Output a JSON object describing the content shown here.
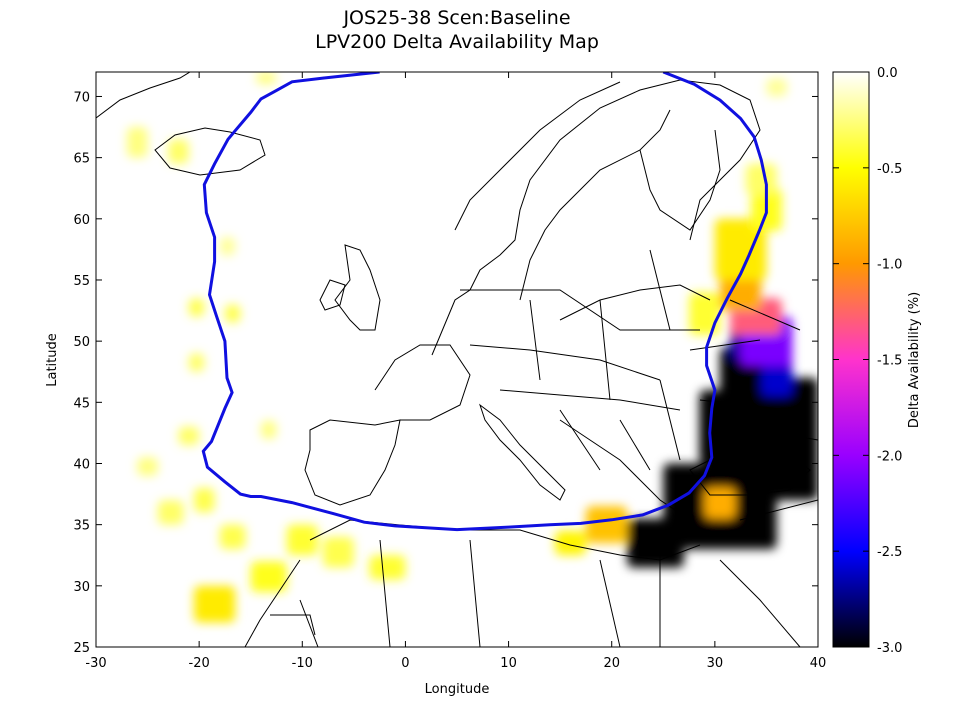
{
  "title": "JOS25-38 Scen:Baseline",
  "subtitle": "LPV200 Delta Availability Map",
  "chart_data": {
    "type": "heatmap",
    "xlabel": "Longitude",
    "ylabel": "Latitude",
    "colorbar_label": "Delta Availability (%)",
    "xlim": [
      -30,
      40
    ],
    "ylim": [
      25,
      72
    ],
    "xticks": [
      -30,
      -20,
      -10,
      0,
      10,
      20,
      30,
      40
    ],
    "yticks": [
      25,
      30,
      35,
      40,
      45,
      50,
      55,
      60,
      65,
      70
    ],
    "colorbar_range": [
      -3.0,
      0.0
    ],
    "colorbar_ticks": [
      "0.0",
      "-0.5",
      "-1.0",
      "-1.5",
      "-2.0",
      "-2.5",
      "-3.0"
    ],
    "colorbar_tick_values": [
      0.0,
      -0.5,
      -1.0,
      -1.5,
      -2.0,
      -2.5,
      -3.0
    ],
    "colormap": [
      "#ffffff",
      "#ffff00",
      "#ff9900",
      "#ff33cc",
      "#9900ff",
      "#0000ff",
      "#000000"
    ],
    "service_area_color": "#1010e0",
    "service_area_boundary": [
      [
        -2.5,
        72.0
      ],
      [
        -8,
        71.5
      ],
      [
        -11,
        71.2
      ],
      [
        -12.5,
        70.5
      ],
      [
        -14,
        69.8
      ],
      [
        -15,
        68.7
      ],
      [
        -16.5,
        67.2
      ],
      [
        -17.2,
        66.5
      ],
      [
        -18.5,
        64.5
      ],
      [
        -19.5,
        62.8
      ],
      [
        -19.3,
        60.5
      ],
      [
        -18.5,
        58.5
      ],
      [
        -18.5,
        56.5
      ],
      [
        -19,
        53.8
      ],
      [
        -18.3,
        52.0
      ],
      [
        -17.5,
        50.0
      ],
      [
        -17.3,
        47.0
      ],
      [
        -16.8,
        45.8
      ],
      [
        -17.5,
        44.5
      ],
      [
        -18.8,
        41.8
      ],
      [
        -19.6,
        41.0
      ],
      [
        -19.2,
        39.7
      ],
      [
        -17.5,
        38.5
      ],
      [
        -16.0,
        37.5
      ],
      [
        -15.0,
        37.3
      ],
      [
        -14.0,
        37.3
      ],
      [
        -11.0,
        36.8
      ],
      [
        -7.0,
        35.9
      ],
      [
        -4.0,
        35.2
      ],
      [
        -1.0,
        34.9
      ],
      [
        5.0,
        34.6
      ],
      [
        10.0,
        34.8
      ],
      [
        14.0,
        35.0
      ],
      [
        17.0,
        35.1
      ],
      [
        20.0,
        35.4
      ],
      [
        23.0,
        35.8
      ],
      [
        25.5,
        36.6
      ],
      [
        27.5,
        37.6
      ],
      [
        29.0,
        39.0
      ],
      [
        29.7,
        40.5
      ],
      [
        29.5,
        42.5
      ],
      [
        29.7,
        44.5
      ],
      [
        30.0,
        46.0
      ],
      [
        29.2,
        48.0
      ],
      [
        29.2,
        49.5
      ],
      [
        30.0,
        51.5
      ],
      [
        31.2,
        53.5
      ],
      [
        32.5,
        55.5
      ],
      [
        33.3,
        57.0
      ],
      [
        34.3,
        59.0
      ],
      [
        35.0,
        60.5
      ],
      [
        35.0,
        62.8
      ],
      [
        34.5,
        64.8
      ],
      [
        33.8,
        66.7
      ],
      [
        32.5,
        68.2
      ],
      [
        30.5,
        69.7
      ],
      [
        28.0,
        71.0
      ],
      [
        25.0,
        72.0
      ]
    ],
    "degradation_cells": [
      [
        21.5,
        31.5,
        5.5,
        4.0,
        -3.0
      ],
      [
        25.0,
        33.0,
        11.0,
        7.0,
        -3.0
      ],
      [
        28.5,
        40.0,
        8.0,
        6.0,
        -3.0
      ],
      [
        30.5,
        44.0,
        5.5,
        5.5,
        -3.0
      ],
      [
        31.5,
        48.5,
        3.5,
        3.0,
        -2.7
      ],
      [
        35.0,
        37.0,
        5.0,
        10.0,
        -3.0
      ],
      [
        34.5,
        45.5,
        3.0,
        3.0,
        -2.6
      ],
      [
        32.5,
        48.0,
        5.0,
        4.0,
        -2.1
      ],
      [
        31.5,
        50.5,
        5.0,
        3.0,
        -1.3
      ],
      [
        30.5,
        52.5,
        4.0,
        3.0,
        -0.9
      ],
      [
        30.0,
        55.0,
        5.0,
        5.0,
        -0.6
      ],
      [
        33.5,
        59.0,
        3.0,
        3.5,
        -0.45
      ],
      [
        33.0,
        62.0,
        3.0,
        2.5,
        -0.3
      ],
      [
        17.5,
        33.5,
        4.0,
        3.0,
        -0.8
      ],
      [
        14.5,
        32.5,
        3.0,
        2.0,
        -0.55
      ],
      [
        29.0,
        35.5,
        3.0,
        2.5,
        -0.9
      ],
      [
        27.5,
        50.5,
        3.0,
        3.5,
        -0.4
      ],
      [
        -27.0,
        65.0,
        2.0,
        2.5,
        -0.25
      ],
      [
        -23.0,
        64.5,
        2.0,
        2.0,
        -0.3
      ],
      [
        -21.0,
        52.0,
        1.5,
        1.5,
        -0.35
      ],
      [
        -17.5,
        51.5,
        1.5,
        1.5,
        -0.35
      ],
      [
        -21.0,
        47.5,
        1.5,
        1.5,
        -0.3
      ],
      [
        -24.0,
        35.0,
        2.5,
        2.0,
        -0.3
      ],
      [
        -20.5,
        36.0,
        2.0,
        2.0,
        -0.35
      ],
      [
        -18.0,
        33.0,
        2.5,
        2.0,
        -0.35
      ],
      [
        -20.5,
        27.0,
        4.0,
        3.0,
        -0.6
      ],
      [
        -15.0,
        29.5,
        3.5,
        2.5,
        -0.45
      ],
      [
        -11.5,
        32.5,
        3.0,
        2.5,
        -0.4
      ],
      [
        -8.0,
        31.5,
        3.0,
        2.5,
        -0.35
      ],
      [
        -3.5,
        30.5,
        3.5,
        2.0,
        -0.4
      ],
      [
        -22.0,
        41.5,
        2.0,
        1.5,
        -0.3
      ],
      [
        -26.0,
        39.0,
        2.0,
        1.5,
        -0.25
      ],
      [
        -14.0,
        42.0,
        1.5,
        1.5,
        -0.25
      ],
      [
        -18.0,
        57.0,
        1.5,
        1.5,
        -0.2
      ],
      [
        -14.5,
        71.0,
        2.0,
        1.0,
        -0.25
      ],
      [
        35.0,
        70.0,
        2.0,
        1.5,
        -0.2
      ]
    ]
  }
}
